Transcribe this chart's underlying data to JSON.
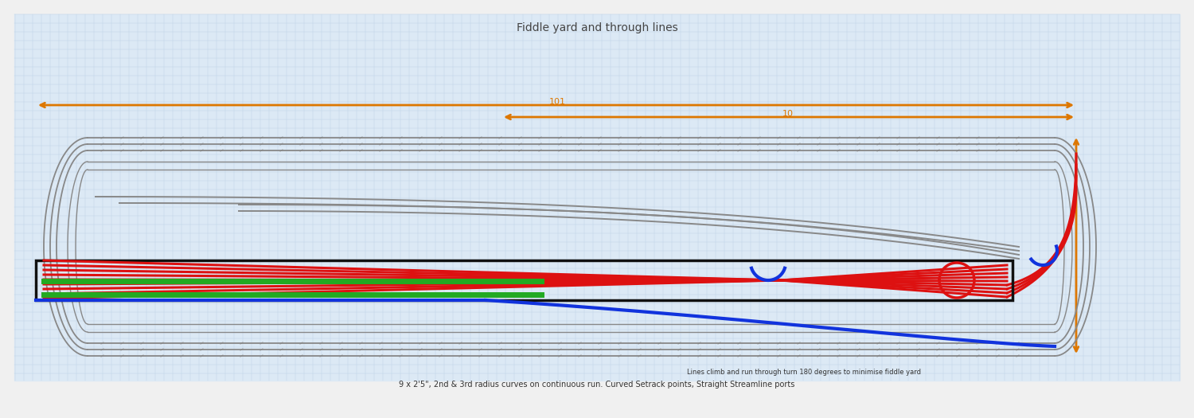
{
  "bg_outer": "#f0f0f0",
  "bg_inner": "#dce9f5",
  "grid_color": "#c0d4e8",
  "track_color": "#888888",
  "track_lw": 1.2,
  "red_color": "#dd1111",
  "blue_color": "#1133dd",
  "green_color": "#22aa22",
  "orange_color": "#dd7700",
  "box_color": "#111111",
  "title_top": "Fiddle yard and through lines",
  "title_bottom": "9 x 2'5\", 2nd & 3rd radius curves on continuous run. Curved Setrack points, Straight Streamline ports",
  "subtitle_inner": "Lines climb and run through turn 180 degrees to minimise fiddle yard",
  "dim_label_short": "10",
  "dim_label_long": "101",
  "fig_width": 15.0,
  "fig_height": 5.25
}
